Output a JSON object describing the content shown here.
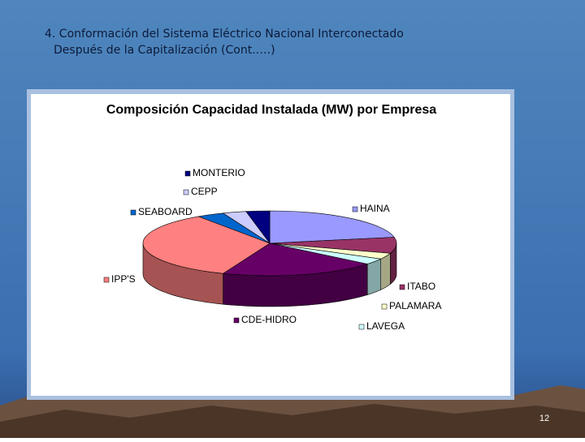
{
  "slide": {
    "title_line1": "4. Conformación del Sistema Eléctrico Nacional  Interconectado",
    "title_line2": "Después de la Capitalización (Cont.….)",
    "page_number": "12"
  },
  "chart_data": {
    "type": "pie",
    "title": "Composición Capacidad Instalada (MW) por Empresa",
    "categories": [
      "HAINA",
      "ITABO",
      "PALAMARA",
      "LAVEGA",
      "CDE-HIDRO",
      "IPP'S",
      "SEABOARD",
      "CEPP",
      "MONTERIO"
    ],
    "values": [
      22,
      8,
      3,
      3,
      20,
      34.5,
      3.5,
      3,
      3
    ],
    "colors": [
      "#9999ff",
      "#993366",
      "#ffffcc",
      "#ccffff",
      "#660066",
      "#ff8080",
      "#0066cc",
      "#ccccff",
      "#000080"
    ]
  }
}
